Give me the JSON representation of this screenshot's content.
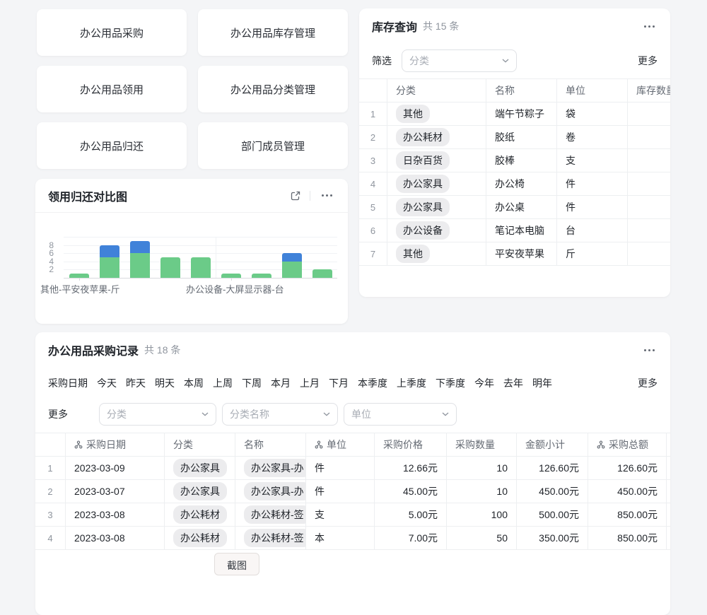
{
  "colors": {
    "green": "#6bcb88",
    "blue": "#4082d9",
    "pill_bg": "#ececee",
    "grid_line": "#edeff1"
  },
  "nav": {
    "buttons": [
      "办公用品采购",
      "办公用品库存管理",
      "办公用品领用",
      "办公用品分类管理",
      "办公用品归还",
      "部门成员管理"
    ]
  },
  "inventory": {
    "title": "库存查询",
    "count": "共 15 条",
    "filter": {
      "label": "筛选",
      "placeholder": "分类",
      "more": "更多"
    },
    "columns": [
      "",
      "分类",
      "名称",
      "单位",
      "库存数量"
    ],
    "rows": [
      {
        "no": "1",
        "category": "其他",
        "name": "端午节粽子",
        "unit": "袋",
        "stock": ""
      },
      {
        "no": "2",
        "category": "办公耗材",
        "name": "胶纸",
        "unit": "卷",
        "stock": ""
      },
      {
        "no": "3",
        "category": "日杂百货",
        "name": "胶棒",
        "unit": "支",
        "stock": ""
      },
      {
        "no": "4",
        "category": "办公家具",
        "name": "办公椅",
        "unit": "件",
        "stock": ""
      },
      {
        "no": "5",
        "category": "办公家具",
        "name": "办公桌",
        "unit": "件",
        "stock": ""
      },
      {
        "no": "6",
        "category": "办公设备",
        "name": "笔记本电脑",
        "unit": "台",
        "stock": ""
      },
      {
        "no": "7",
        "category": "其他",
        "name": "平安夜苹果",
        "unit": "斤",
        "stock": ""
      }
    ]
  },
  "chart_panel": {
    "title": "领用归还对比图"
  },
  "chart_data": {
    "type": "bar",
    "stacked": true,
    "title": "领用归还对比图",
    "series": [
      {
        "name": "green-series",
        "color": "#6bcb88",
        "values": [
          1,
          5,
          6,
          5,
          5,
          1,
          1,
          4,
          2
        ]
      },
      {
        "name": "blue-series",
        "color": "#4082d9",
        "values": [
          0,
          3,
          3,
          0,
          0,
          0,
          0,
          2,
          0
        ]
      }
    ],
    "ylim": [
      0,
      10
    ],
    "yticks": [
      2,
      4,
      6,
      8
    ],
    "visible_x_labels": [
      {
        "text": "其他-平安夜苹果-斤",
        "slot": 0
      },
      {
        "text": "办公设备-大屏显示器-台",
        "slot": 5
      }
    ],
    "legend": "none",
    "grid": true
  },
  "purchase": {
    "title": "办公用品采购记录",
    "count": "共 18 条",
    "date_filter": {
      "label": "采购日期",
      "options": [
        "今天",
        "昨天",
        "明天",
        "本周",
        "上周",
        "下周",
        "本月",
        "上月",
        "下月",
        "本季度",
        "上季度",
        "下季度",
        "今年",
        "去年",
        "明年"
      ],
      "more": "更多"
    },
    "filters": {
      "more_label": "更多",
      "dropdown_placeholders": [
        "分类",
        "分类名称",
        "单位"
      ]
    },
    "columns": [
      {
        "label": "",
        "index": true
      },
      {
        "label": "采购日期",
        "lookup": true
      },
      {
        "label": "分类"
      },
      {
        "label": "名称"
      },
      {
        "label": "单位",
        "lookup": true
      },
      {
        "label": "采购价格"
      },
      {
        "label": "采购数量"
      },
      {
        "label": "金额小计"
      },
      {
        "label": "采购总额",
        "lookup": true
      },
      {
        "label": ""
      }
    ],
    "rows": [
      {
        "no": "1",
        "date": "2023-03-09",
        "category": "办公家具",
        "name": "办公家具-办",
        "unit": "件",
        "price": "12.66元",
        "qty": "10",
        "subtotal": "126.60元",
        "total": "126.60元"
      },
      {
        "no": "2",
        "date": "2023-03-07",
        "category": "办公家具",
        "name": "办公家具-办",
        "unit": "件",
        "price": "45.00元",
        "qty": "10",
        "subtotal": "450.00元",
        "total": "450.00元"
      },
      {
        "no": "3",
        "date": "2023-03-08",
        "category": "办公耗材",
        "name": "办公耗材-签",
        "unit": "支",
        "price": "5.00元",
        "qty": "100",
        "subtotal": "500.00元",
        "total": "850.00元"
      },
      {
        "no": "4",
        "date": "2023-03-08",
        "category": "办公耗材",
        "name": "办公耗材-签",
        "unit": "本",
        "price": "7.00元",
        "qty": "50",
        "subtotal": "350.00元",
        "total": "850.00元"
      }
    ]
  },
  "footer": {
    "screenshot_label": "截图"
  }
}
